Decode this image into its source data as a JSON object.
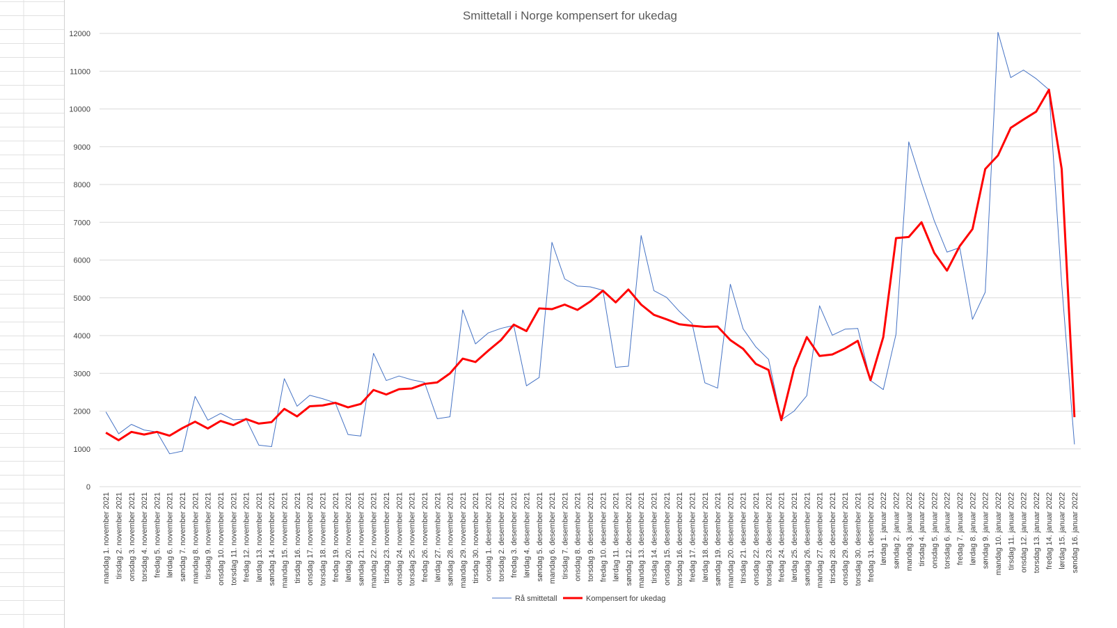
{
  "chart_data": {
    "type": "line",
    "title": "Smittetall i Norge kompensert for ukedag",
    "xlabel": "",
    "ylabel": "",
    "ylim": [
      0,
      12000
    ],
    "yticks": [
      0,
      1000,
      2000,
      3000,
      4000,
      5000,
      6000,
      7000,
      8000,
      9000,
      10000,
      11000,
      12000
    ],
    "grid": true,
    "legend_position": "bottom",
    "categories": [
      "mandag 1. november 2021",
      "tirsdag 2. november 2021",
      "onsdag 3. november 2021",
      "torsdag 4. november 2021",
      "fredag 5. november 2021",
      "lørdag 6. november 2021",
      "søndag 7. november 2021",
      "mandag 8. november 2021",
      "tirsdag 9. november 2021",
      "onsdag 10. november 2021",
      "torsdag 11. november 2021",
      "fredag 12. november 2021",
      "lørdag 13. november 2021",
      "søndag 14. november 2021",
      "mandag 15. november 2021",
      "tirsdag 16. november 2021",
      "onsdag 17. november 2021",
      "torsdag 18. november 2021",
      "fredag 19. november 2021",
      "lørdag 20. november 2021",
      "søndag 21. november 2021",
      "mandag 22. november 2021",
      "tirsdag 23. november 2021",
      "onsdag 24. november 2021",
      "torsdag 25. november 2021",
      "fredag 26. november 2021",
      "lørdag 27. november 2021",
      "søndag 28. november 2021",
      "mandag 29. november 2021",
      "tirsdag 30. november 2021",
      "onsdag 1. desember 2021",
      "torsdag 2. desember 2021",
      "fredag 3. desember 2021",
      "lørdag 4. desember 2021",
      "søndag 5. desember 2021",
      "mandag 6. desember 2021",
      "tirsdag 7. desember 2021",
      "onsdag 8. desember 2021",
      "torsdag 9. desember 2021",
      "fredag 10. desember 2021",
      "lørdag 11. desember 2021",
      "søndag 12. desember 2021",
      "mandag 13. desember 2021",
      "tirsdag 14. desember 2021",
      "onsdag 15. desember 2021",
      "torsdag 16. desember 2021",
      "fredag 17. desember 2021",
      "lørdag 18. desember 2021",
      "søndag 19. desember 2021",
      "mandag 20. desember 2021",
      "tirsdag 21. desember 2021",
      "onsdag 22. desember 2021",
      "torsdag 23. desember 2021",
      "fredag 24. desember 2021",
      "lørdag 25. desember 2021",
      "søndag 26. desember 2021",
      "mandag 27. desember 2021",
      "tirsdag 28. desember 2021",
      "onsdag 29. desember 2021",
      "torsdag 30. desember 2021",
      "fredag 31. desember 2021",
      "lørdag 1. januar 2022",
      "søndag 2. januar 2022",
      "mandag 3. januar 2022",
      "tirsdag 4. januar 2022",
      "onsdag 5. januar 2022",
      "torsdag 6. januar 2022",
      "fredag 7. januar 2022",
      "lørdag 8. januar 2022",
      "søndag 9. januar 2022",
      "mandag 10. januar 2022",
      "tirsdag 11. januar 2022",
      "onsdag 12. januar 2022",
      "torsdag 13. januar 2022",
      "fredag 14. januar 2022",
      "lørdag 15. januar 2022",
      "søndag 16. januar 2022"
    ],
    "series": [
      {
        "name": "Rå smittetall",
        "color": "#4472c4",
        "values": [
          1980,
          1400,
          1650,
          1500,
          1450,
          870,
          940,
          2390,
          1760,
          1940,
          1770,
          1790,
          1100,
          1060,
          2860,
          2130,
          2420,
          2330,
          2220,
          1380,
          1340,
          3530,
          2810,
          2930,
          2830,
          2760,
          1800,
          1850,
          4680,
          3780,
          4070,
          4190,
          4270,
          2670,
          2890,
          6470,
          5500,
          5310,
          5290,
          5200,
          3160,
          3190,
          6650,
          5190,
          5010,
          4640,
          4320,
          2750,
          2610,
          5360,
          4180,
          3700,
          3370,
          1770,
          2000,
          2410,
          4790,
          4010,
          4170,
          4190,
          2810,
          2570,
          4040,
          9130,
          8050,
          7040,
          6210,
          6330,
          4430,
          5150,
          12030,
          10830,
          11030,
          10800,
          10510,
          5360,
          1120
        ]
      },
      {
        "name": "Kompensert for ukedag",
        "color": "#ff0000",
        "values": [
          1430,
          1230,
          1450,
          1380,
          1450,
          1350,
          1550,
          1720,
          1540,
          1740,
          1630,
          1790,
          1670,
          1710,
          2060,
          1860,
          2130,
          2150,
          2220,
          2100,
          2190,
          2560,
          2440,
          2580,
          2600,
          2720,
          2760,
          3000,
          3390,
          3300,
          3600,
          3880,
          4290,
          4120,
          4720,
          4700,
          4820,
          4680,
          4900,
          5190,
          4880,
          5220,
          4820,
          4550,
          4430,
          4300,
          4260,
          4230,
          4240,
          3880,
          3650,
          3250,
          3090,
          1760,
          3130,
          3960,
          3460,
          3500,
          3660,
          3860,
          2820,
          3960,
          6580,
          6610,
          7000,
          6190,
          5720,
          6370,
          6820,
          8410,
          8770,
          9500,
          9720,
          9930,
          10510,
          8410,
          1840
        ]
      }
    ]
  }
}
